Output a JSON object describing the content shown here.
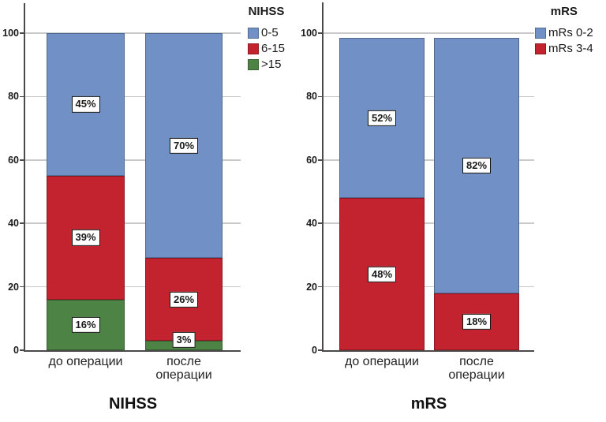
{
  "figure": {
    "background": "#ffffff",
    "description_visible_text_only": true
  },
  "colors": {
    "blue": "#7190c6",
    "red": "#c2232e",
    "green": "#4d8345",
    "gridline": "#c9c9c9",
    "axis": "#4a4a4a",
    "label_box_bg": "#ffffff",
    "label_box_border": "#111111"
  },
  "chart_data": [
    {
      "id": "nihss",
      "type": "bar",
      "stacked": true,
      "title": "NIHSS",
      "legend_title": "NIHSS",
      "legend_position": "top-right",
      "grid": true,
      "categories": [
        "до операции",
        "после операции"
      ],
      "series": [
        {
          "name": "0-5",
          "color": "#7190c6",
          "values": [
            45,
            70
          ]
        },
        {
          "name": "6-15",
          "color": "#c2232e",
          "values": [
            39,
            26
          ]
        },
        {
          "name": ">15",
          "color": "#4d8345",
          "values": [
            16,
            3
          ]
        }
      ],
      "data_labels": [
        [
          "45%",
          "70%"
        ],
        [
          "39%",
          "26%"
        ],
        [
          "16%",
          "3%"
        ]
      ],
      "ylim": [
        0,
        100
      ],
      "yticks": [
        0,
        20,
        40,
        60,
        80,
        100
      ],
      "bar_top": 100
    },
    {
      "id": "mrs",
      "type": "bar",
      "stacked": true,
      "title": "mRS",
      "legend_title": "mRS",
      "legend_position": "top-right",
      "grid": true,
      "categories": [
        "до операции",
        "после операции"
      ],
      "series": [
        {
          "name": "mRs 0-2",
          "color": "#7190c6",
          "values": [
            52,
            82
          ]
        },
        {
          "name": "mRs 3-4",
          "color": "#c2232e",
          "values": [
            48,
            18
          ]
        }
      ],
      "data_labels": [
        [
          "52%",
          "82%"
        ],
        [
          "48%",
          "18%"
        ]
      ],
      "ylim": [
        0,
        100
      ],
      "yticks": [
        0,
        20,
        40,
        60,
        80,
        100
      ],
      "bar_top": 98.5
    }
  ]
}
